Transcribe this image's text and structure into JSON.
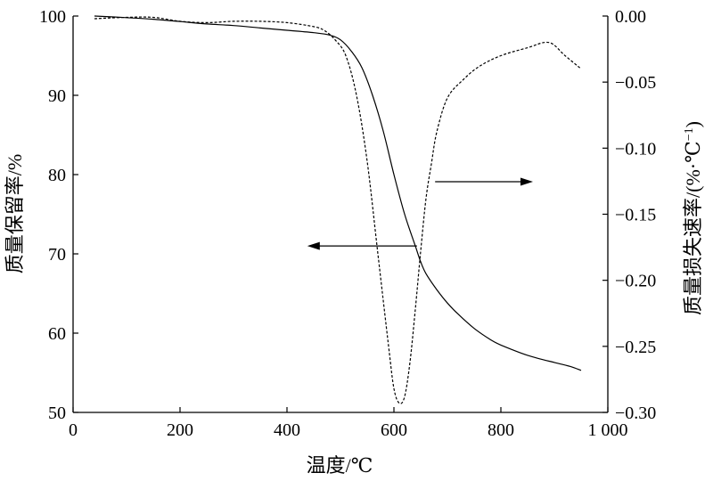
{
  "chart_data": {
    "type": "line",
    "title": "",
    "xlabel": "温度/℃",
    "ylabel": "质量保留率/%",
    "y2label": "质量损失速率/(%·℃",
    "y2label_sup": "−1",
    "y2label_end": ")",
    "xlim": [
      0,
      1000
    ],
    "ylim": [
      50,
      100
    ],
    "y2lim": [
      -0.3,
      0.0
    ],
    "x_ticks": [
      0,
      200,
      400,
      600,
      800,
      1000
    ],
    "x_tick_labels": [
      "0",
      "200",
      "400",
      "600",
      "800",
      "1 000"
    ],
    "y_ticks": [
      50,
      60,
      70,
      80,
      90,
      100
    ],
    "y_tick_labels": [
      "50",
      "60",
      "70",
      "80",
      "90",
      "100"
    ],
    "y2_ticks": [
      0.0,
      -0.05,
      -0.1,
      -0.15,
      -0.2,
      -0.25,
      -0.3
    ],
    "y2_tick_labels": [
      "0.00",
      "−0.05",
      "−0.10",
      "−0.15",
      "−0.20",
      "−0.25",
      "−0.30"
    ],
    "grid": false,
    "legend": "none",
    "series": [
      {
        "axis": "left",
        "style": "solid",
        "x": [
          40,
          100,
          150,
          200,
          250,
          300,
          350,
          400,
          450,
          480,
          500,
          520,
          540,
          560,
          580,
          600,
          620,
          640,
          650,
          660,
          680,
          700,
          720,
          750,
          780,
          800,
          850,
          900,
          930,
          950
        ],
        "y": [
          100,
          99.8,
          99.6,
          99.3,
          99.0,
          98.8,
          98.5,
          98.2,
          97.9,
          97.6,
          97.0,
          95.6,
          93.5,
          90.0,
          85.5,
          80.0,
          75.0,
          71.0,
          69.0,
          67.5,
          65.5,
          63.8,
          62.4,
          60.6,
          59.2,
          58.5,
          57.2,
          56.3,
          55.8,
          55.3
        ]
      },
      {
        "axis": "right",
        "style": "dashed",
        "x": [
          40,
          100,
          150,
          200,
          250,
          300,
          350,
          400,
          450,
          470,
          490,
          510,
          530,
          550,
          570,
          590,
          600,
          610,
          620,
          630,
          640,
          650,
          660,
          670,
          680,
          700,
          730,
          760,
          800,
          850,
          890,
          920,
          950
        ],
        "y": [
          -0.002,
          -0.001,
          -0.001,
          -0.004,
          -0.005,
          -0.004,
          -0.004,
          -0.005,
          -0.008,
          -0.011,
          -0.018,
          -0.03,
          -0.06,
          -0.11,
          -0.18,
          -0.25,
          -0.282,
          -0.293,
          -0.288,
          -0.262,
          -0.222,
          -0.178,
          -0.138,
          -0.112,
          -0.088,
          -0.062,
          -0.048,
          -0.038,
          -0.03,
          -0.024,
          -0.02,
          -0.03,
          -0.04
        ]
      }
    ],
    "annotations": [
      {
        "type": "arrow",
        "target_axis": "left",
        "from": [
          643,
          71
        ],
        "to": [
          438,
          71
        ]
      },
      {
        "type": "arrow",
        "target_axis": "right",
        "from": [
          677,
          -0.1254
        ],
        "to": [
          860,
          -0.1254
        ]
      }
    ]
  }
}
